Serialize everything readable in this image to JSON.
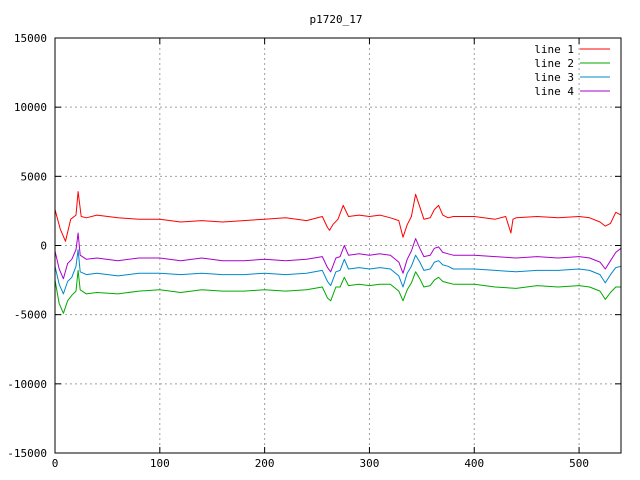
{
  "chart_data": {
    "type": "line",
    "title": "p1720_17",
    "xlabel": "",
    "ylabel": "",
    "xlim": [
      0,
      540
    ],
    "ylim": [
      -15000,
      15000
    ],
    "xticks": [
      0,
      100,
      200,
      300,
      400,
      500
    ],
    "yticks": [
      -15000,
      -10000,
      -5000,
      0,
      5000,
      10000,
      15000
    ],
    "grid": true,
    "legend_position": "top-right",
    "series": [
      {
        "name": "line 1",
        "color": "#ff0000",
        "x": [
          0,
          5,
          10,
          15,
          20,
          22,
          25,
          30,
          40,
          60,
          80,
          100,
          110,
          120,
          140,
          160,
          180,
          200,
          220,
          240,
          255,
          260,
          262,
          265,
          270,
          275,
          280,
          290,
          300,
          310,
          320,
          328,
          332,
          336,
          340,
          344,
          348,
          352,
          358,
          362,
          366,
          370,
          375,
          380,
          400,
          420,
          430,
          435,
          437,
          440,
          460,
          480,
          500,
          510,
          520,
          525,
          530,
          535,
          540
        ],
        "y": [
          2600,
          1200,
          300,
          1900,
          2200,
          3900,
          2100,
          2000,
          2200,
          2000,
          1900,
          1900,
          1800,
          1700,
          1800,
          1700,
          1800,
          1900,
          2000,
          1800,
          2100,
          1300,
          1100,
          1500,
          1900,
          2900,
          2100,
          2200,
          2100,
          2200,
          2000,
          1800,
          600,
          1500,
          2100,
          3700,
          2800,
          1900,
          2000,
          2600,
          2900,
          2200,
          2000,
          2100,
          2100,
          1900,
          2100,
          900,
          1900,
          2000,
          2100,
          2000,
          2100,
          2000,
          1700,
          1400,
          1600,
          2400,
          2200
        ]
      },
      {
        "name": "line 2",
        "color": "#00aa00",
        "x": [
          0,
          4,
          8,
          12,
          16,
          20,
          22,
          24,
          30,
          40,
          60,
          80,
          100,
          120,
          140,
          160,
          180,
          200,
          220,
          240,
          255,
          260,
          263,
          268,
          272,
          276,
          280,
          290,
          300,
          310,
          320,
          328,
          332,
          336,
          340,
          344,
          348,
          352,
          358,
          362,
          366,
          370,
          375,
          380,
          400,
          420,
          440,
          460,
          480,
          500,
          510,
          520,
          525,
          530,
          535,
          540
        ],
        "y": [
          -2500,
          -4200,
          -4900,
          -4000,
          -3600,
          -3300,
          -1800,
          -3200,
          -3500,
          -3400,
          -3500,
          -3300,
          -3200,
          -3400,
          -3200,
          -3300,
          -3300,
          -3200,
          -3300,
          -3200,
          -3000,
          -3800,
          -4000,
          -3000,
          -3000,
          -2300,
          -2900,
          -2800,
          -2900,
          -2800,
          -2800,
          -3300,
          -4000,
          -3200,
          -2700,
          -1900,
          -2400,
          -3000,
          -2900,
          -2500,
          -2300,
          -2600,
          -2700,
          -2800,
          -2800,
          -3000,
          -3100,
          -2900,
          -3000,
          -2900,
          -3000,
          -3300,
          -3900,
          -3400,
          -3000,
          -3000
        ]
      },
      {
        "name": "line 3",
        "color": "#0088cc",
        "x": [
          0,
          4,
          8,
          12,
          16,
          20,
          22,
          24,
          30,
          40,
          60,
          80,
          100,
          120,
          140,
          160,
          180,
          200,
          220,
          240,
          255,
          260,
          263,
          268,
          272,
          276,
          280,
          290,
          300,
          310,
          320,
          328,
          332,
          336,
          340,
          344,
          348,
          352,
          358,
          362,
          366,
          370,
          375,
          380,
          400,
          420,
          440,
          460,
          480,
          500,
          510,
          520,
          525,
          530,
          535,
          540
        ],
        "y": [
          -1500,
          -2800,
          -3500,
          -2600,
          -2300,
          -1500,
          -300,
          -1900,
          -2100,
          -2000,
          -2200,
          -2000,
          -2000,
          -2100,
          -2000,
          -2100,
          -2100,
          -2000,
          -2100,
          -2000,
          -1800,
          -2600,
          -2900,
          -1900,
          -1800,
          -1000,
          -1700,
          -1600,
          -1700,
          -1600,
          -1700,
          -2200,
          -3000,
          -2000,
          -1500,
          -700,
          -1200,
          -1800,
          -1700,
          -1200,
          -1100,
          -1400,
          -1500,
          -1700,
          -1700,
          -1800,
          -1900,
          -1800,
          -1800,
          -1700,
          -1800,
          -2100,
          -2700,
          -2100,
          -1600,
          -1500
        ]
      },
      {
        "name": "line 4",
        "color": "#aa00cc",
        "x": [
          0,
          4,
          8,
          12,
          16,
          20,
          22,
          24,
          30,
          40,
          60,
          80,
          100,
          120,
          140,
          160,
          180,
          200,
          220,
          240,
          255,
          260,
          263,
          268,
          272,
          276,
          280,
          290,
          300,
          310,
          320,
          328,
          332,
          336,
          340,
          344,
          348,
          352,
          358,
          362,
          366,
          370,
          375,
          380,
          400,
          420,
          440,
          460,
          480,
          500,
          510,
          520,
          525,
          530,
          535,
          540
        ],
        "y": [
          -400,
          -1700,
          -2400,
          -1300,
          -1000,
          -300,
          900,
          -700,
          -1000,
          -900,
          -1100,
          -900,
          -900,
          -1100,
          -900,
          -1100,
          -1100,
          -1000,
          -1100,
          -1000,
          -800,
          -1600,
          -1900,
          -900,
          -800,
          0,
          -700,
          -600,
          -700,
          -600,
          -700,
          -1200,
          -2000,
          -1000,
          -400,
          500,
          -200,
          -800,
          -700,
          -200,
          -100,
          -500,
          -600,
          -700,
          -700,
          -800,
          -900,
          -800,
          -900,
          -800,
          -900,
          -1200,
          -1700,
          -1100,
          -500,
          -200
        ]
      }
    ]
  }
}
